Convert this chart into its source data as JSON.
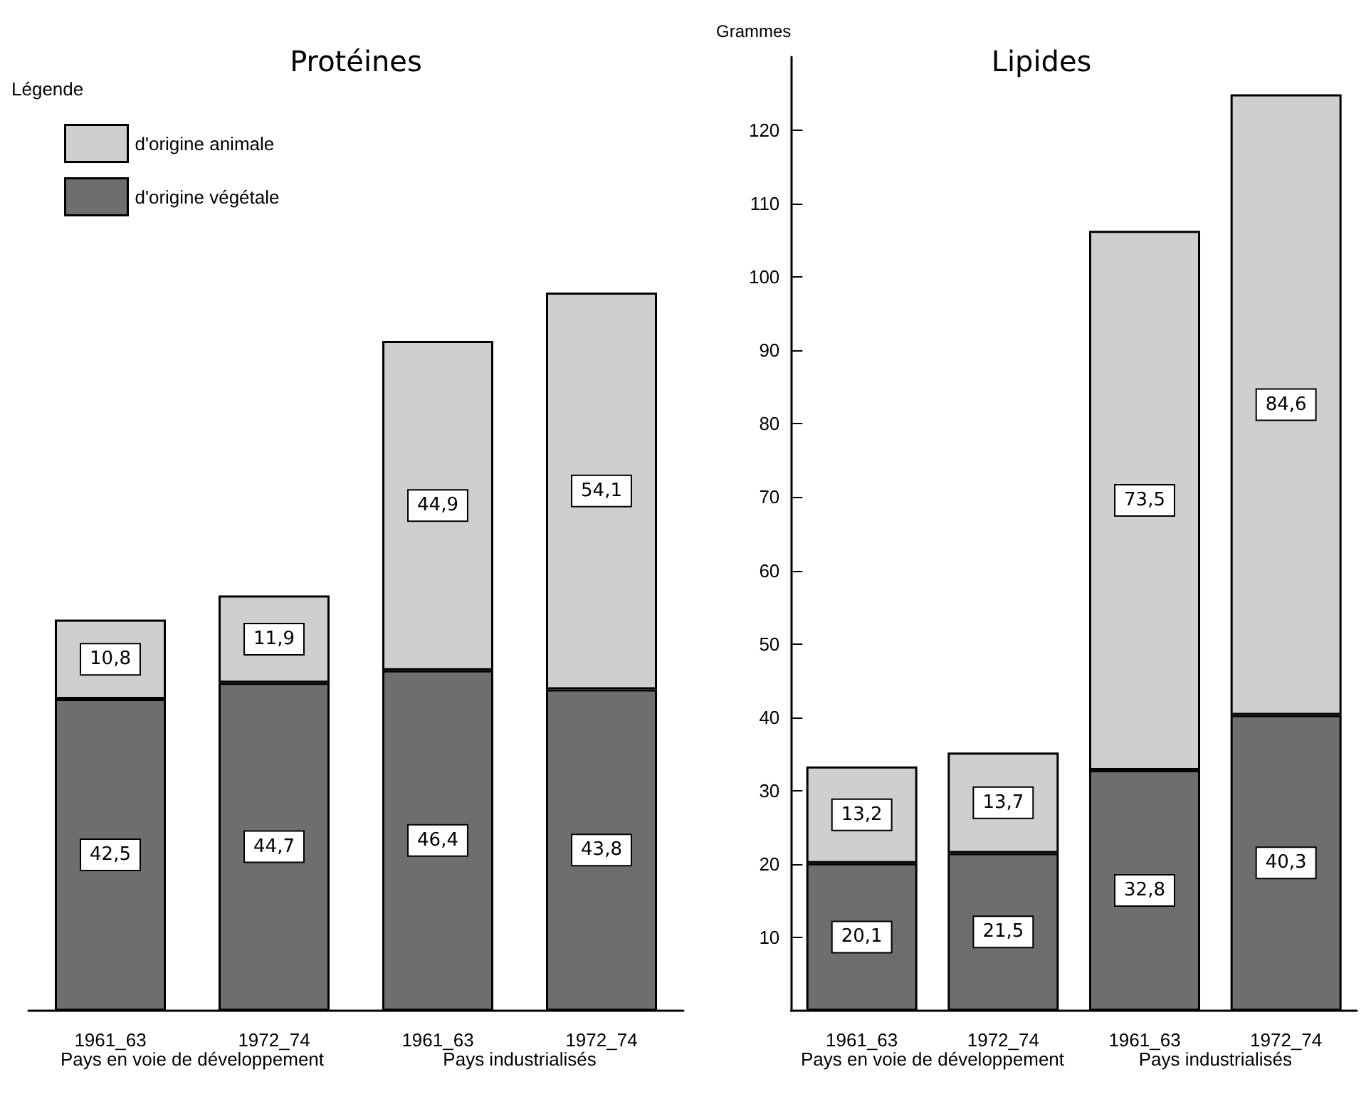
{
  "chart_data": [
    {
      "type": "bar",
      "title": "Protéines",
      "categories": [
        "1961_63",
        "1972_74",
        "1961_63",
        "1972_74"
      ],
      "stacked": true,
      "series": [
        {
          "name": "d'origine végétale",
          "color": "#6e6e6e",
          "values": [
            42.5,
            44.7,
            46.4,
            43.8
          ],
          "value_labels": [
            "42,5",
            "44,7",
            "46,4",
            "43,8"
          ]
        },
        {
          "name": "d'origine animale",
          "color": "#cfcfcf",
          "values": [
            10.8,
            11.9,
            44.9,
            54.1
          ],
          "value_labels": [
            "10,8",
            "11,9",
            "44,9",
            "54,1"
          ]
        }
      ],
      "tick_labels": "x",
      "grid": false,
      "legend": "top left",
      "legend_title": "Légende",
      "annotations": [
        "Pays en voie de développement",
        "Pays industrialisés"
      ]
    },
    {
      "type": "bar",
      "title": "Lipides",
      "ylabel": "Grammes",
      "categories": [
        "1961_63",
        "1972_74",
        "1961_63",
        "1972_74"
      ],
      "stacked": true,
      "series": [
        {
          "color": "#6e6e6e",
          "values": [
            20.1,
            21.5,
            32.8,
            40.3
          ],
          "value_labels": [
            "20,1",
            "21,5",
            "32,8",
            "40,3"
          ]
        },
        {
          "color": "#cfcfcf",
          "values": [
            13.2,
            13.7,
            73.5,
            84.6
          ],
          "value_labels": [
            "13,2",
            "13,7",
            "73,5",
            "84,6"
          ]
        }
      ],
      "ylim": [
        0,
        130
      ],
      "yticks": [
        10,
        20,
        30,
        40,
        50,
        60,
        70,
        80,
        90,
        100,
        110,
        120
      ],
      "grid": false,
      "legend": false,
      "annotations": [
        "Pays en voie de développement",
        "Pays industrialisés"
      ]
    }
  ]
}
